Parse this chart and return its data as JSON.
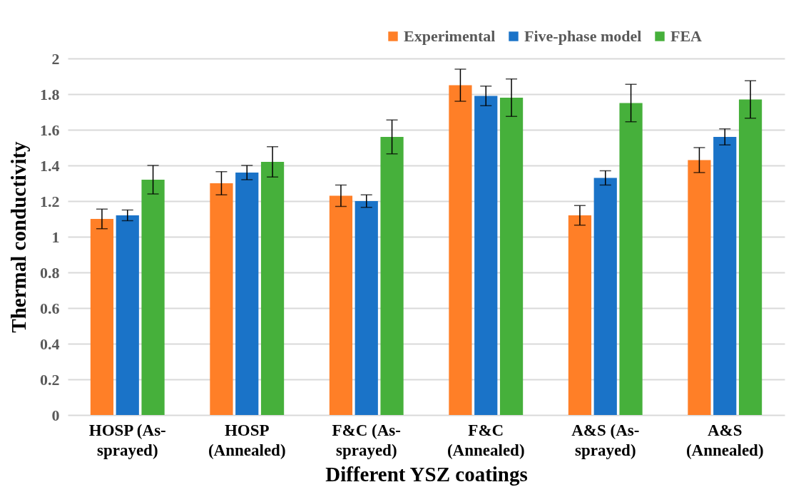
{
  "chart_data": {
    "type": "bar",
    "xlabel": "Different YSZ coatings",
    "ylabel": "Thermal conductivity",
    "categories": [
      "HOSP (As-sprayed)",
      "HOSP (Annealed)",
      "F&C (As-sprayed)",
      "F&C (Annealed)",
      "A&S (As-sprayed)",
      "A&S (Annealed)"
    ],
    "series": [
      {
        "name": "Experimental",
        "color": "#ff7f27",
        "values": [
          1.1,
          1.3,
          1.23,
          1.85,
          1.12,
          1.43
        ],
        "errors": [
          0.055,
          0.065,
          0.06,
          0.09,
          0.055,
          0.07
        ]
      },
      {
        "name": "Five-phase model",
        "color": "#1a73c8",
        "values": [
          1.12,
          1.36,
          1.2,
          1.79,
          1.33,
          1.56
        ],
        "errors": [
          0.03,
          0.04,
          0.035,
          0.055,
          0.04,
          0.045
        ]
      },
      {
        "name": "FEA",
        "color": "#46b03b",
        "values": [
          1.32,
          1.42,
          1.56,
          1.78,
          1.75,
          1.77
        ],
        "errors": [
          0.08,
          0.085,
          0.095,
          0.105,
          0.105,
          0.105
        ]
      }
    ],
    "ylim": [
      0,
      2
    ],
    "yticks": [
      0,
      0.2,
      0.4,
      0.6,
      0.8,
      1,
      1.2,
      1.4,
      1.6,
      1.8,
      2
    ],
    "grid": "y",
    "legend": "top right"
  }
}
